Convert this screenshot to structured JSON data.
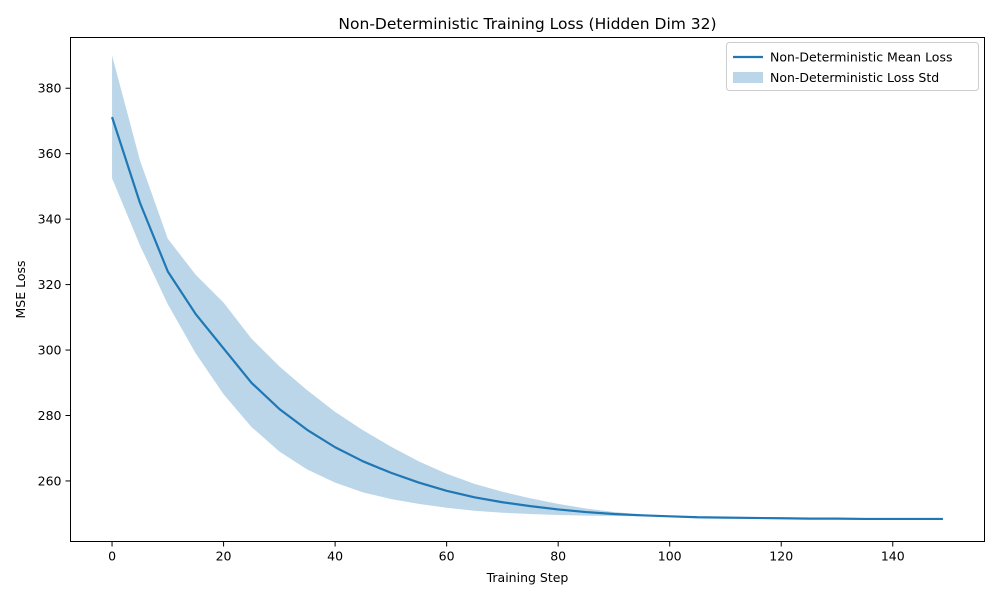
{
  "chart_data": {
    "type": "line",
    "title": "Non-Deterministic Training Loss (Hidden Dim 32)",
    "xlabel": "Training Step",
    "ylabel": "MSE Loss",
    "xlim": [
      -7.45,
      156.45
    ],
    "ylim": [
      241.5,
      395.5
    ],
    "x_ticks": [
      0,
      20,
      40,
      60,
      80,
      100,
      120,
      140
    ],
    "y_ticks": [
      260,
      280,
      300,
      320,
      340,
      360,
      380
    ],
    "grid": false,
    "legend_position": "upper right",
    "series": [
      {
        "name": "Non-Deterministic Mean Loss",
        "kind": "line",
        "color": "#1f77b4",
        "x": [
          0,
          5,
          10,
          15,
          20,
          25,
          30,
          35,
          40,
          45,
          50,
          55,
          60,
          65,
          70,
          75,
          80,
          85,
          90,
          95,
          100,
          105,
          110,
          115,
          120,
          125,
          130,
          135,
          140,
          145,
          149
        ],
        "y": [
          371.2,
          345.0,
          324.0,
          311.0,
          300.5,
          290.0,
          282.0,
          275.6,
          270.3,
          266.0,
          262.5,
          259.5,
          257.0,
          255.0,
          253.5,
          252.3,
          251.3,
          250.5,
          249.9,
          249.5,
          249.2,
          248.9,
          248.8,
          248.7,
          248.6,
          248.5,
          248.5,
          248.4,
          248.4,
          248.4,
          248.4
        ]
      },
      {
        "name": "Non-Deterministic Loss Std",
        "kind": "band",
        "color": "#1f77b4",
        "opacity": 0.3,
        "x": [
          0,
          5,
          10,
          15,
          20,
          25,
          30,
          35,
          40,
          45,
          50,
          55,
          60,
          65,
          70,
          75,
          80,
          85,
          90,
          95,
          100,
          105,
          110,
          115,
          120,
          125,
          130,
          135,
          140,
          145,
          149
        ],
        "lower": [
          352.5,
          332.0,
          314.0,
          299.0,
          286.5,
          276.5,
          269.0,
          263.5,
          259.5,
          256.5,
          254.5,
          253.0,
          251.8,
          250.9,
          250.3,
          249.9,
          249.6,
          249.4,
          249.3,
          249.2,
          249.1,
          248.9,
          248.8,
          248.7,
          248.6,
          248.5,
          248.5,
          248.4,
          248.4,
          248.4,
          248.4
        ],
        "upper": [
          390.0,
          358.0,
          334.0,
          323.0,
          314.5,
          303.5,
          295.0,
          287.7,
          281.1,
          275.5,
          270.5,
          266.0,
          262.2,
          259.1,
          256.7,
          254.7,
          253.0,
          251.6,
          250.5,
          249.8,
          249.3,
          248.9,
          248.8,
          248.7,
          248.6,
          248.5,
          248.5,
          248.4,
          248.4,
          248.4,
          248.4
        ]
      }
    ]
  }
}
